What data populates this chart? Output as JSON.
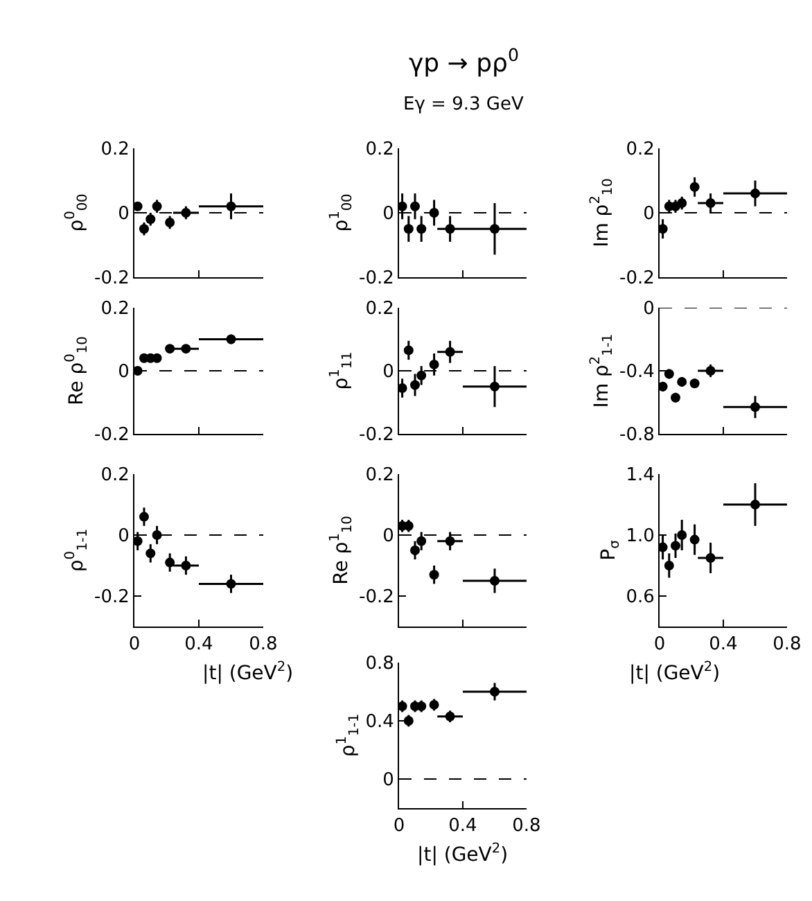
{
  "chart_data": [
    {
      "type": "scatter",
      "ylabel": "ρ$^{0}$$_{00}$",
      "x": [
        0.02,
        0.06,
        0.1,
        0.14,
        0.22,
        0.32,
        0.6
      ],
      "xlim": [
        0,
        0.8
      ],
      "xticks": [
        0,
        0.4,
        0.8
      ],
      "ylim": [
        -0.2,
        0.2
      ],
      "yticks": [
        -0.2,
        0,
        0.2
      ],
      "tick_labels": "y",
      "marker": "circle",
      "series": [
        {
          "color": "#000000",
          "values": [
            0.02,
            -0.05,
            -0.02,
            0.02,
            -0.03,
            0.0,
            0.02
          ],
          "errors": [
            0.01,
            0.02,
            0.02,
            0.02,
            0.02,
            0.02,
            0.04
          ],
          "xerrors": [
            null,
            null,
            null,
            null,
            null,
            0.08,
            0.2
          ]
        }
      ],
      "ref_lines": [
        {
          "axis": "y",
          "value": 0,
          "line_style": "dashed"
        }
      ]
    },
    {
      "type": "scatter",
      "title": "γp → pρ$^{0}$",
      "subtitle": "Eγ = 9.3 GeV",
      "ylabel": "ρ$^{1}$$_{00}$",
      "x": [
        0.02,
        0.06,
        0.1,
        0.14,
        0.22,
        0.32,
        0.6
      ],
      "xlim": [
        0,
        0.8
      ],
      "xticks": [
        0,
        0.4,
        0.8
      ],
      "ylim": [
        -0.2,
        0.2
      ],
      "yticks": [
        -0.2,
        0,
        0.2
      ],
      "tick_labels": "y",
      "marker": "circle",
      "series": [
        {
          "color": "#000000",
          "values": [
            0.02,
            -0.05,
            0.02,
            -0.05,
            0.0,
            -0.05,
            -0.05
          ],
          "errors": [
            0.04,
            0.04,
            0.04,
            0.04,
            0.04,
            0.04,
            0.08
          ],
          "xerrors": [
            null,
            null,
            null,
            null,
            null,
            0.08,
            0.2
          ]
        }
      ],
      "ref_lines": [
        {
          "axis": "y",
          "value": 0,
          "line_style": "dashed"
        }
      ]
    },
    {
      "type": "scatter",
      "ylabel": "Im ρ$^{2}$$_{10}$",
      "x": [
        0.02,
        0.06,
        0.1,
        0.14,
        0.22,
        0.32,
        0.6
      ],
      "xlim": [
        0,
        0.8
      ],
      "xticks": [
        0,
        0.4,
        0.8
      ],
      "ylim": [
        -0.2,
        0.2
      ],
      "yticks": [
        -0.2,
        0,
        0.2
      ],
      "tick_labels": "y",
      "marker": "circle",
      "series": [
        {
          "color": "#000000",
          "values": [
            -0.05,
            0.02,
            0.02,
            0.03,
            0.08,
            0.03,
            0.06
          ],
          "errors": [
            0.03,
            0.02,
            0.02,
            0.02,
            0.03,
            0.03,
            0.04
          ],
          "xerrors": [
            null,
            null,
            null,
            null,
            null,
            0.08,
            0.2
          ]
        }
      ],
      "ref_lines": [
        {
          "axis": "y",
          "value": 0,
          "line_style": "dashed"
        }
      ]
    },
    {
      "type": "scatter",
      "ylabel": "Re ρ$^{0}$$_{10}$",
      "x": [
        0.02,
        0.06,
        0.1,
        0.14,
        0.22,
        0.32,
        0.6
      ],
      "xlim": [
        0,
        0.8
      ],
      "xticks": [
        0,
        0.4,
        0.8
      ],
      "ylim": [
        -0.2,
        0.2
      ],
      "yticks": [
        -0.2,
        0,
        0.2
      ],
      "tick_labels": "y",
      "marker": "circle",
      "series": [
        {
          "color": "#000000",
          "values": [
            0.0,
            0.04,
            0.04,
            0.04,
            0.07,
            0.07,
            0.1
          ],
          "errors": [
            0.01,
            0.01,
            0.01,
            0.01,
            0.01,
            0.01,
            0.015
          ],
          "xerrors": [
            null,
            null,
            null,
            null,
            null,
            0.08,
            0.2
          ]
        }
      ],
      "ref_lines": [
        {
          "axis": "y",
          "value": 0,
          "line_style": "dashed"
        }
      ]
    },
    {
      "type": "scatter",
      "ylabel": "ρ$^{1}$$_{11}$",
      "x": [
        0.02,
        0.06,
        0.1,
        0.14,
        0.22,
        0.32,
        0.6
      ],
      "xlim": [
        0,
        0.8
      ],
      "xticks": [
        0,
        0.4,
        0.8
      ],
      "ylim": [
        -0.2,
        0.2
      ],
      "yticks": [
        -0.2,
        0,
        0.2
      ],
      "tick_labels": "y",
      "marker": "circle",
      "series": [
        {
          "color": "#000000",
          "values": [
            -0.055,
            0.065,
            -0.045,
            -0.015,
            0.02,
            0.06,
            -0.05
          ],
          "errors": [
            0.03,
            0.03,
            0.035,
            0.03,
            0.035,
            0.035,
            0.065
          ],
          "xerrors": [
            null,
            null,
            null,
            null,
            null,
            0.08,
            0.2
          ]
        }
      ],
      "ref_lines": [
        {
          "axis": "y",
          "value": 0,
          "line_style": "dashed"
        }
      ]
    },
    {
      "type": "scatter",
      "ylabel": "Im ρ$^{2}$$_{1-1}$",
      "x": [
        0.02,
        0.06,
        0.1,
        0.14,
        0.22,
        0.32,
        0.6
      ],
      "xlim": [
        0,
        0.8
      ],
      "xticks": [
        0,
        0.4,
        0.8
      ],
      "ylim": [
        -0.8,
        0
      ],
      "yticks": [
        -0.8,
        -0.4,
        0
      ],
      "tick_labels": "y",
      "marker": "circle",
      "series": [
        {
          "color": "#000000",
          "values": [
            -0.5,
            -0.42,
            -0.57,
            -0.47,
            -0.48,
            -0.4,
            -0.63
          ],
          "errors": [
            0.03,
            0.03,
            0.03,
            0.03,
            0.03,
            0.04,
            0.07
          ],
          "xerrors": [
            null,
            null,
            null,
            null,
            null,
            0.08,
            0.2
          ]
        }
      ],
      "ref_lines": [
        {
          "axis": "y",
          "value": 0,
          "line_style": "dashed"
        }
      ]
    },
    {
      "type": "scatter",
      "ylabel": "ρ$^{0}$$_{1-1}$",
      "xlabel": "|t| (GeV$^{2}$)",
      "x": [
        0.02,
        0.06,
        0.1,
        0.14,
        0.22,
        0.32,
        0.6
      ],
      "xlim": [
        0,
        0.8
      ],
      "xticks": [
        0,
        0.4,
        0.8
      ],
      "ylim": [
        -0.3,
        0.2
      ],
      "yticks": [
        -0.2,
        0,
        0.2
      ],
      "marker": "circle",
      "series": [
        {
          "color": "#000000",
          "values": [
            -0.02,
            0.06,
            -0.06,
            0.0,
            -0.09,
            -0.1,
            -0.16
          ],
          "errors": [
            0.03,
            0.03,
            0.03,
            0.03,
            0.03,
            0.03,
            0.03
          ],
          "xerrors": [
            null,
            null,
            null,
            null,
            null,
            0.08,
            0.2
          ]
        }
      ],
      "ref_lines": [
        {
          "axis": "y",
          "value": 0,
          "line_style": "dashed"
        }
      ]
    },
    {
      "type": "scatter",
      "ylabel": "Re ρ$^{1}$$_{10}$",
      "x": [
        0.02,
        0.06,
        0.1,
        0.14,
        0.22,
        0.32,
        0.6
      ],
      "xlim": [
        0,
        0.8
      ],
      "xticks": [
        0,
        0.4,
        0.8
      ],
      "ylim": [
        -0.3,
        0.2
      ],
      "yticks": [
        -0.2,
        0,
        0.2
      ],
      "tick_labels": "y",
      "marker": "circle",
      "series": [
        {
          "color": "#000000",
          "values": [
            0.03,
            0.03,
            -0.05,
            -0.02,
            -0.13,
            -0.02,
            -0.15
          ],
          "errors": [
            0.02,
            0.02,
            0.03,
            0.03,
            0.03,
            0.03,
            0.04
          ],
          "xerrors": [
            null,
            null,
            null,
            null,
            null,
            0.08,
            0.2
          ]
        }
      ],
      "ref_lines": [
        {
          "axis": "y",
          "value": 0,
          "line_style": "dashed"
        }
      ]
    },
    {
      "type": "scatter",
      "ylabel": "P$_{σ}$",
      "xlabel": "|t| (GeV$^{2}$)",
      "x": [
        0.02,
        0.06,
        0.1,
        0.14,
        0.22,
        0.32,
        0.6
      ],
      "xlim": [
        0,
        0.8
      ],
      "xticks": [
        0,
        0.4,
        0.8
      ],
      "ylim": [
        0.4,
        1.4
      ],
      "yticks": [
        0.6,
        {
          "value": 1.0,
          "label": "1.0"
        },
        1.4
      ],
      "marker": "circle",
      "series": [
        {
          "color": "#000000",
          "values": [
            0.92,
            0.8,
            0.93,
            1.0,
            0.97,
            0.85,
            1.2
          ],
          "errors": [
            0.08,
            0.08,
            0.08,
            0.1,
            0.1,
            0.1,
            0.14
          ],
          "xerrors": [
            null,
            null,
            null,
            null,
            null,
            0.08,
            0.2
          ]
        }
      ]
    },
    {
      "type": "scatter",
      "ylabel": "ρ$^{1}$$_{1-1}$",
      "xlabel": "|t| (GeV$^{2}$)",
      "x": [
        0.02,
        0.06,
        0.1,
        0.14,
        0.22,
        0.32,
        0.6
      ],
      "xlim": [
        0,
        0.8
      ],
      "xticks": [
        0,
        0.4,
        0.8
      ],
      "ylim": [
        -0.2,
        0.8
      ],
      "yticks": [
        0,
        0.4,
        0.8
      ],
      "marker": "circle",
      "series": [
        {
          "color": "#000000",
          "values": [
            0.5,
            0.4,
            0.5,
            0.5,
            0.51,
            0.43,
            0.6
          ],
          "errors": [
            0.04,
            0.04,
            0.04,
            0.04,
            0.04,
            0.04,
            0.06
          ],
          "xerrors": [
            null,
            null,
            null,
            null,
            null,
            0.08,
            0.2
          ]
        }
      ],
      "ref_lines": [
        {
          "axis": "y",
          "value": 0,
          "line_style": "dashed"
        }
      ]
    }
  ]
}
